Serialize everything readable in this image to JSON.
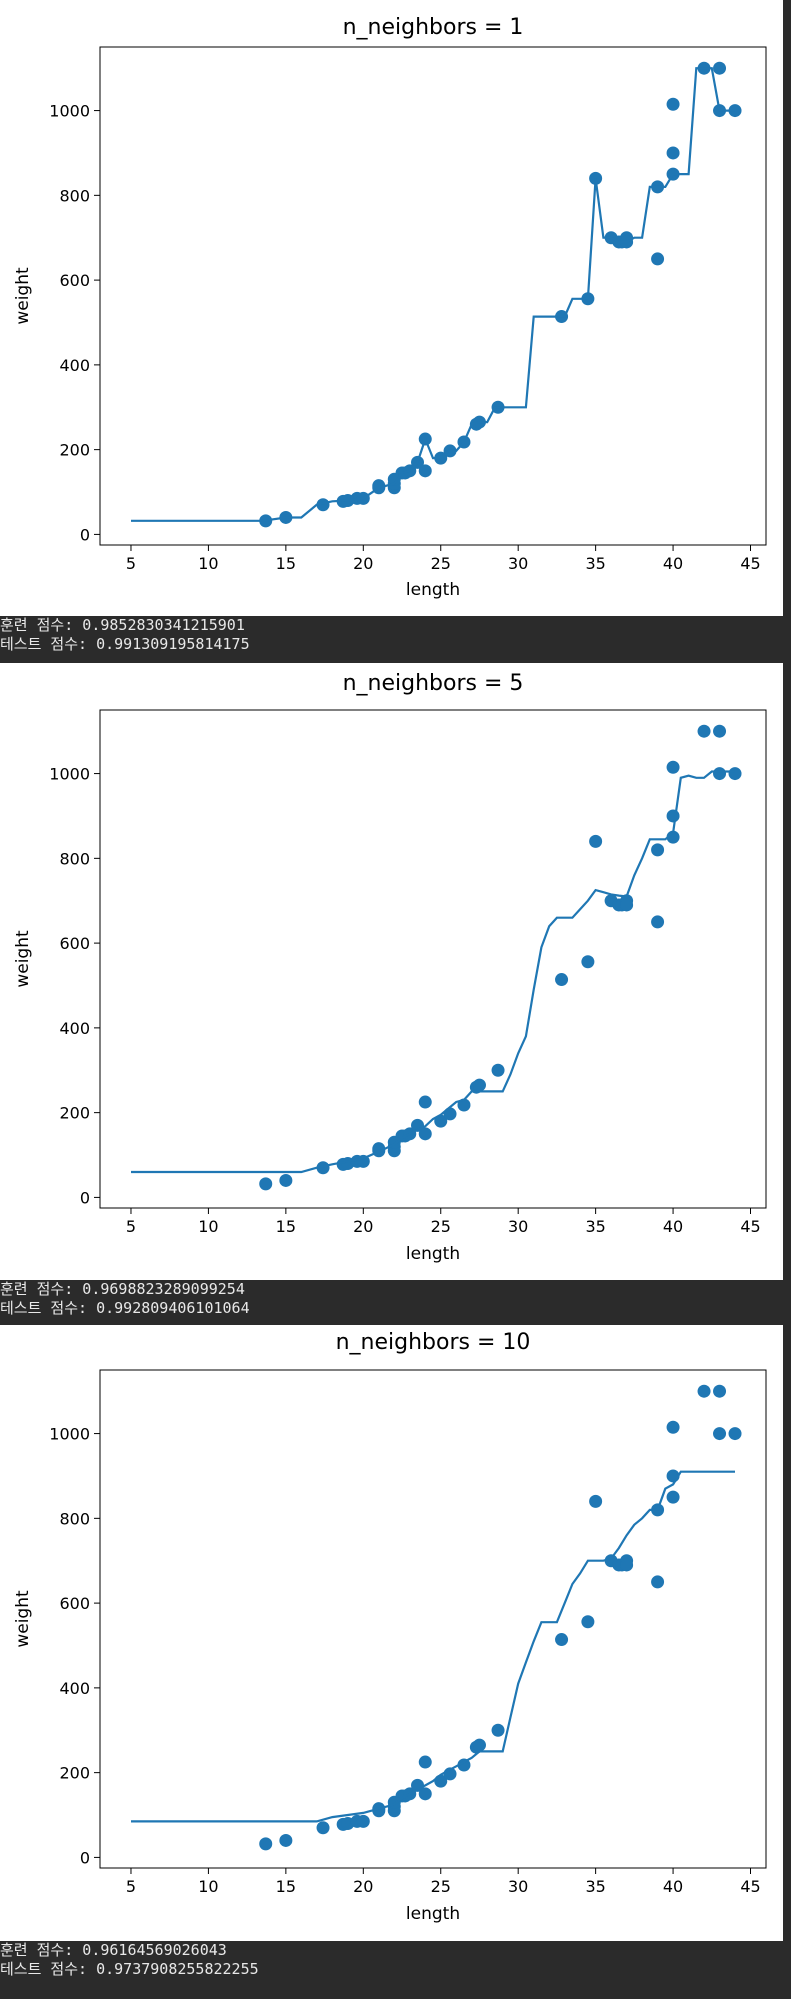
{
  "colors": {
    "series": "#1f77b4",
    "output_bg": "#2b2b2b",
    "output_text": "#e8e8e8"
  },
  "chart_data": [
    {
      "type": "scatter",
      "title": "n_neighbors = 1",
      "xlabel": "length",
      "ylabel": "weight",
      "xlim": [
        3,
        46
      ],
      "ylim": [
        -25,
        1150
      ],
      "xticks": [
        5,
        10,
        15,
        20,
        25,
        30,
        35,
        40,
        45
      ],
      "yticks": [
        0,
        200,
        400,
        600,
        800,
        1000
      ],
      "grid": false,
      "points": [
        [
          13.7,
          32
        ],
        [
          15.0,
          40
        ],
        [
          17.4,
          70
        ],
        [
          18.7,
          78
        ],
        [
          19.0,
          80
        ],
        [
          19.6,
          85
        ],
        [
          20.0,
          85
        ],
        [
          21.0,
          110
        ],
        [
          21.0,
          115
        ],
        [
          22.0,
          110
        ],
        [
          22.0,
          120
        ],
        [
          22.0,
          130
        ],
        [
          22.5,
          145
        ],
        [
          22.7,
          145
        ],
        [
          23.0,
          150
        ],
        [
          23.5,
          170
        ],
        [
          24.0,
          150
        ],
        [
          24.0,
          225
        ],
        [
          25.0,
          180
        ],
        [
          25.6,
          197
        ],
        [
          26.5,
          218
        ],
        [
          27.3,
          260
        ],
        [
          27.5,
          265
        ],
        [
          28.7,
          300
        ],
        [
          32.8,
          514
        ],
        [
          34.5,
          556
        ],
        [
          35.0,
          840
        ],
        [
          36.0,
          700
        ],
        [
          36.5,
          690
        ],
        [
          36.7,
          690
        ],
        [
          37.0,
          700
        ],
        [
          37.0,
          690
        ],
        [
          39.0,
          650
        ],
        [
          39.0,
          820
        ],
        [
          40.0,
          850
        ],
        [
          40.0,
          900
        ],
        [
          40.0,
          1015
        ],
        [
          42.0,
          1100
        ],
        [
          43.0,
          1000
        ],
        [
          43.0,
          1100
        ],
        [
          44.0,
          1000
        ]
      ],
      "line": {
        "x": [
          5,
          13.5,
          15,
          16,
          17,
          18,
          19,
          20,
          21,
          22,
          22.5,
          23,
          23.5,
          24,
          24.5,
          25,
          25.5,
          26,
          26.5,
          27,
          27.5,
          28,
          28.5,
          29,
          29.5,
          30,
          30.5,
          31,
          31.5,
          32,
          32.5,
          33,
          33.5,
          34,
          34.5,
          35,
          35.5,
          36,
          36.5,
          37,
          37.5,
          38,
          38.5,
          39,
          39.5,
          40,
          40.5,
          41,
          41.5,
          42,
          42.5,
          43,
          43.5,
          44
        ],
        "y": [
          32,
          32,
          40,
          40,
          70,
          78,
          80,
          85,
          110,
          120,
          145,
          150,
          170,
          225,
          180,
          180,
          197,
          197,
          218,
          260,
          265,
          265,
          300,
          300,
          300,
          300,
          300,
          514,
          514,
          514,
          514,
          514,
          556,
          556,
          556,
          840,
          700,
          700,
          690,
          690,
          700,
          700,
          820,
          820,
          820,
          850,
          850,
          850,
          1100,
          1100,
          1100,
          1000,
          1000,
          1000
        ]
      }
    },
    {
      "type": "scatter",
      "title": "n_neighbors = 5",
      "xlabel": "length",
      "ylabel": "weight",
      "xlim": [
        3,
        46
      ],
      "ylim": [
        -25,
        1150
      ],
      "xticks": [
        5,
        10,
        15,
        20,
        25,
        30,
        35,
        40,
        45
      ],
      "yticks": [
        0,
        200,
        400,
        600,
        800,
        1000
      ],
      "grid": false,
      "points": [
        [
          13.7,
          32
        ],
        [
          15.0,
          40
        ],
        [
          17.4,
          70
        ],
        [
          18.7,
          78
        ],
        [
          19.0,
          80
        ],
        [
          19.6,
          85
        ],
        [
          20.0,
          85
        ],
        [
          21.0,
          110
        ],
        [
          21.0,
          115
        ],
        [
          22.0,
          110
        ],
        [
          22.0,
          120
        ],
        [
          22.0,
          130
        ],
        [
          22.5,
          145
        ],
        [
          22.7,
          145
        ],
        [
          23.0,
          150
        ],
        [
          23.5,
          170
        ],
        [
          24.0,
          150
        ],
        [
          24.0,
          225
        ],
        [
          25.0,
          180
        ],
        [
          25.6,
          197
        ],
        [
          26.5,
          218
        ],
        [
          27.3,
          260
        ],
        [
          27.5,
          265
        ],
        [
          28.7,
          300
        ],
        [
          32.8,
          514
        ],
        [
          34.5,
          556
        ],
        [
          35.0,
          840
        ],
        [
          36.0,
          700
        ],
        [
          36.5,
          690
        ],
        [
          36.7,
          690
        ],
        [
          37.0,
          700
        ],
        [
          37.0,
          690
        ],
        [
          39.0,
          650
        ],
        [
          39.0,
          820
        ],
        [
          40.0,
          850
        ],
        [
          40.0,
          900
        ],
        [
          40.0,
          1015
        ],
        [
          42.0,
          1100
        ],
        [
          43.0,
          1000
        ],
        [
          43.0,
          1100
        ],
        [
          44.0,
          1000
        ]
      ],
      "line": {
        "x": [
          5,
          13.5,
          15,
          16,
          17,
          18,
          19,
          20,
          21,
          22,
          22.5,
          23,
          23.5,
          24,
          24.5,
          25,
          25.5,
          26,
          26.5,
          27,
          27.5,
          28,
          28.5,
          29,
          29.5,
          30,
          30.5,
          31,
          31.5,
          32,
          32.5,
          33,
          33.5,
          34,
          34.5,
          35,
          35.5,
          36,
          36.5,
          37,
          37.5,
          38,
          38.5,
          39,
          39.5,
          40,
          40.5,
          41,
          41.5,
          42,
          42.5,
          43,
          43.5,
          44
        ],
        "y": [
          60,
          60,
          60,
          60,
          70,
          78,
          85,
          92,
          108,
          125,
          140,
          150,
          160,
          168,
          185,
          195,
          210,
          225,
          230,
          250,
          250,
          250,
          250,
          250,
          290,
          340,
          380,
          490,
          590,
          640,
          660,
          660,
          660,
          680,
          700,
          725,
          720,
          715,
          712,
          710,
          760,
          800,
          845,
          845,
          845,
          860,
          990,
          995,
          990,
          990,
          1005,
          1005,
          1005,
          1005
        ]
      }
    },
    {
      "type": "scatter",
      "title": "n_neighbors = 10",
      "xlabel": "length",
      "ylabel": "weight",
      "xlim": [
        3,
        46
      ],
      "ylim": [
        -25,
        1150
      ],
      "xticks": [
        5,
        10,
        15,
        20,
        25,
        30,
        35,
        40,
        45
      ],
      "yticks": [
        0,
        200,
        400,
        600,
        800,
        1000
      ],
      "grid": false,
      "points": [
        [
          13.7,
          32
        ],
        [
          15.0,
          40
        ],
        [
          17.4,
          70
        ],
        [
          18.7,
          78
        ],
        [
          19.0,
          80
        ],
        [
          19.6,
          85
        ],
        [
          20.0,
          85
        ],
        [
          21.0,
          110
        ],
        [
          21.0,
          115
        ],
        [
          22.0,
          110
        ],
        [
          22.0,
          120
        ],
        [
          22.0,
          130
        ],
        [
          22.5,
          145
        ],
        [
          22.7,
          145
        ],
        [
          23.0,
          150
        ],
        [
          23.5,
          170
        ],
        [
          24.0,
          150
        ],
        [
          24.0,
          225
        ],
        [
          25.0,
          180
        ],
        [
          25.6,
          197
        ],
        [
          26.5,
          218
        ],
        [
          27.3,
          260
        ],
        [
          27.5,
          265
        ],
        [
          28.7,
          300
        ],
        [
          32.8,
          514
        ],
        [
          34.5,
          556
        ],
        [
          35.0,
          840
        ],
        [
          36.0,
          700
        ],
        [
          36.5,
          690
        ],
        [
          36.7,
          690
        ],
        [
          37.0,
          700
        ],
        [
          37.0,
          690
        ],
        [
          39.0,
          650
        ],
        [
          39.0,
          820
        ],
        [
          40.0,
          850
        ],
        [
          40.0,
          900
        ],
        [
          40.0,
          1015
        ],
        [
          42.0,
          1100
        ],
        [
          43.0,
          1000
        ],
        [
          43.0,
          1100
        ],
        [
          44.0,
          1000
        ]
      ],
      "line": {
        "x": [
          5,
          13.5,
          15,
          16,
          17,
          18,
          19,
          20,
          21,
          22,
          22.5,
          23,
          23.5,
          24,
          24.5,
          25,
          25.5,
          26,
          26.5,
          27,
          27.5,
          28,
          28.5,
          29,
          29.5,
          30,
          30.5,
          31,
          31.5,
          32,
          32.5,
          33,
          33.5,
          34,
          34.5,
          35,
          35.5,
          36,
          36.5,
          37,
          37.5,
          38,
          38.5,
          39,
          39.5,
          40,
          40.5,
          41,
          41.5,
          42,
          42.5,
          43,
          43.5,
          44
        ],
        "y": [
          85,
          85,
          85,
          85,
          85,
          95,
          100,
          105,
          115,
          125,
          140,
          150,
          160,
          170,
          180,
          195,
          205,
          215,
          225,
          235,
          250,
          250,
          250,
          250,
          330,
          410,
          460,
          510,
          555,
          555,
          555,
          600,
          645,
          670,
          700,
          700,
          700,
          705,
          730,
          760,
          785,
          800,
          820,
          820,
          870,
          880,
          910,
          910,
          910,
          910,
          910,
          910,
          910,
          910
        ]
      }
    }
  ],
  "outputs": [
    {
      "train_label": "훈련 점수:",
      "train_score": "0.9852830341215901",
      "test_label": "테스트 점수:",
      "test_score": "0.991309195814175"
    },
    {
      "train_label": "훈련 점수:",
      "train_score": "0.9698823289099254",
      "test_label": "테스트 점수:",
      "test_score": "0.992809406101064"
    },
    {
      "train_label": "훈련 점수:",
      "train_score": "0.96164569026043",
      "test_label": "테스트 점수:",
      "test_score": "0.9737908255822255"
    }
  ]
}
